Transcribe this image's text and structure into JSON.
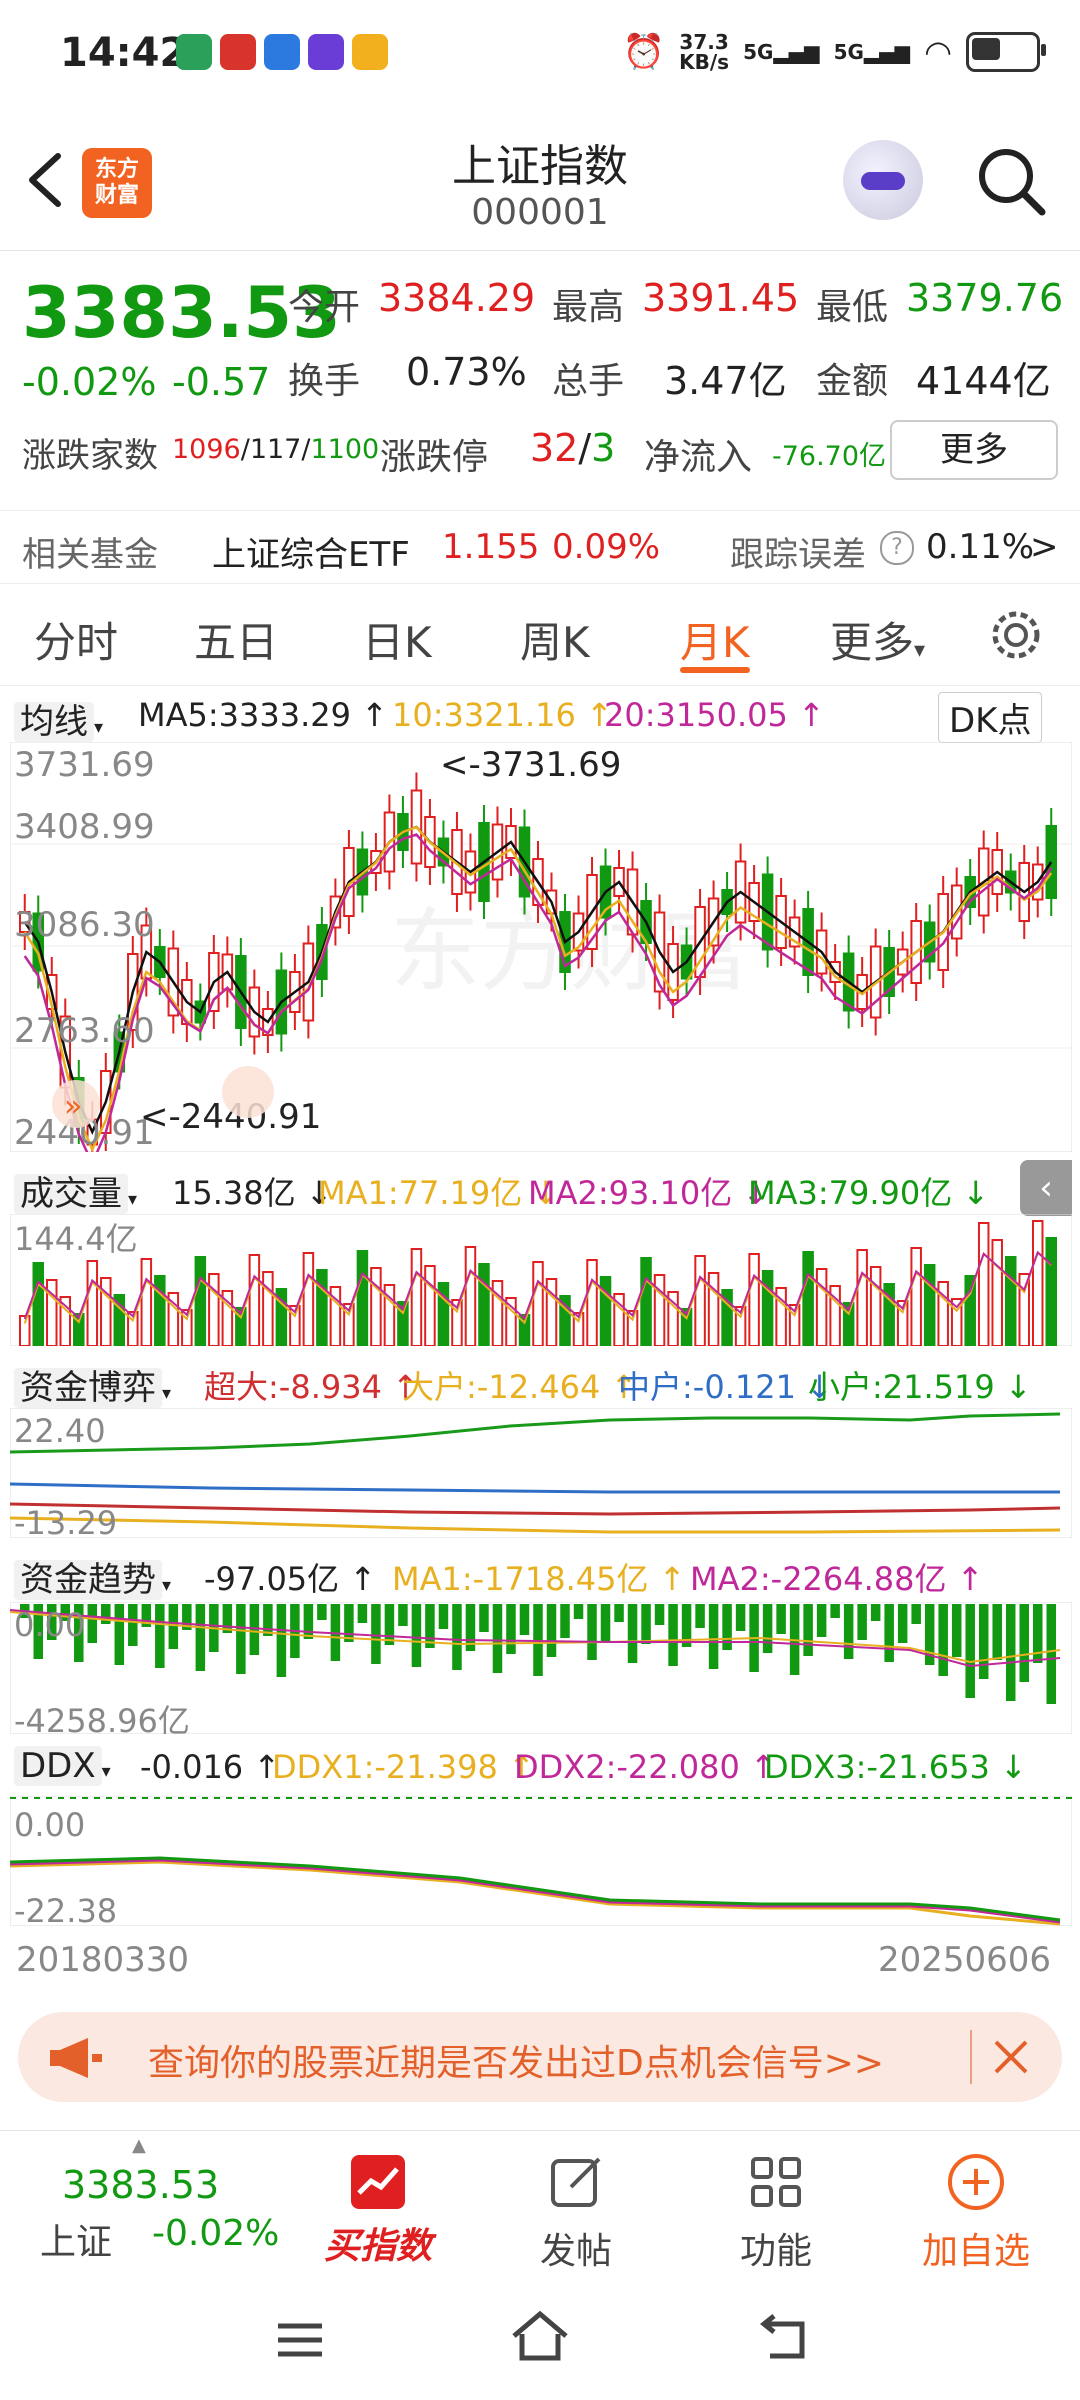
{
  "status_bar": {
    "time": "14:42",
    "net_speed_top": "37.3",
    "net_speed_bottom": "KB/s",
    "sig1": "5G",
    "sig2": "5G"
  },
  "header": {
    "title": "上证指数",
    "code": "000001",
    "logo_top": "东方",
    "logo_bottom": "财富"
  },
  "quote": {
    "price": "3383.53",
    "change_pct": "-0.02%",
    "change_abs": "-0.57",
    "open_label": "今开",
    "open": "3384.29",
    "high_label": "最高",
    "high": "3391.45",
    "low_label": "最低",
    "low": "3379.76",
    "turnover_label": "换手",
    "turnover": "0.73%",
    "volume_label": "总手",
    "volume": "3.47亿",
    "amount_label": "金额",
    "amount": "4144亿",
    "breadth_label": "涨跌家数",
    "breadth_up": "1096",
    "breadth_flat": "117",
    "breadth_down": "1100",
    "limit_label": "涨跌停",
    "limit_up": "32",
    "limit_down": "3",
    "netflow_label": "净流入",
    "netflow": "-76.70亿",
    "more": "更多"
  },
  "fund": {
    "label": "相关基金",
    "name": "上证综合ETF",
    "price": "1.155",
    "pct": "0.09%",
    "track_label": "跟踪误差",
    "track_val": "0.11%",
    "chevron": ">"
  },
  "tabs": [
    "分时",
    "五日",
    "日K",
    "周K",
    "月K",
    "更多"
  ],
  "kline_header": {
    "ma_select": "均线",
    "ma5": "MA5:3333.29 ↑",
    "ma10": "10:3321.16 ↑",
    "ma20": "20:3150.05 ↑",
    "dk": "DK点"
  },
  "kline": {
    "y_labels": [
      "3731.69",
      "3408.99",
      "3086.30",
      "2763.60",
      "2440.91"
    ],
    "max_note": "<-3731.69",
    "min_note": "<-2440.91",
    "watermark": "东方财富"
  },
  "volume": {
    "select": "成交量",
    "val": "15.38亿 ↓",
    "ma1": "MA1:77.19亿 ↓",
    "ma2": "MA2:93.10亿 ↓",
    "ma3": "MA3:79.90亿 ↓",
    "y_top": "144.4亿"
  },
  "fund_game": {
    "select": "资金博弈",
    "super": "超大:-8.934 ↑",
    "large": "大户:-12.464 ↑",
    "mid": "中户:-0.121 ↓",
    "small": "小户:21.519 ↓",
    "y_top": "22.40",
    "y_bottom": "-13.29"
  },
  "fund_trend": {
    "select": "资金趋势",
    "val": "-97.05亿 ↑",
    "ma1": "MA1:-1718.45亿 ↑",
    "ma2": "MA2:-2264.88亿 ↑",
    "y_top": "0.00",
    "y_bottom": "-4258.96亿"
  },
  "ddx": {
    "select": "DDX",
    "val": "-0.016 ↑",
    "ddx1": "DDX1:-21.398 ↑",
    "ddx2": "DDX2:-22.080 ↑",
    "ddx3": "DDX3:-21.653 ↓",
    "y_top": "0.00",
    "y_bottom": "-22.38"
  },
  "date_range": {
    "start": "20180330",
    "end": "20250606"
  },
  "banner": {
    "text": "查询你的股票近期是否发出过D点机会信号>>"
  },
  "bottom_nav": {
    "index_price": "3383.53",
    "index_name": "上证",
    "index_pct": "-0.02%",
    "buy_index": "买指数",
    "post": "发帖",
    "function": "功能",
    "add_watch": "加自选"
  },
  "colors": {
    "up": "#e02020",
    "down": "#119911",
    "accent": "#f26322",
    "ma10": "#e8b020",
    "ma20": "#c0289a"
  }
}
